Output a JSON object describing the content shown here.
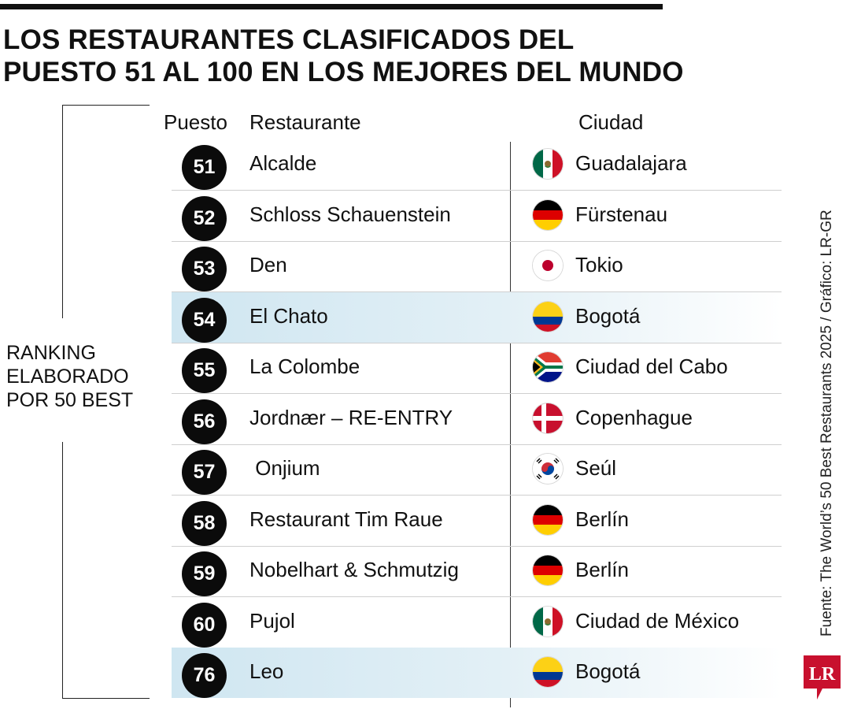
{
  "title": {
    "line1": "LOS RESTAURANTES CLASIFICADOS DEL",
    "line2": "PUESTO 51 AL 100 EN LOS MEJORES DEL MUNDO"
  },
  "side_label": {
    "line1": "RANKING",
    "line2": "ELABORADO",
    "line3": "POR 50 BEST"
  },
  "headers": {
    "puesto": "Puesto",
    "restaurante": "Restaurante",
    "ciudad": "Ciudad"
  },
  "rows": [
    {
      "rank": "51",
      "name": "Alcalde",
      "city": "Guadalajara",
      "flag_icon": "mexico-flag-icon",
      "highlight": false
    },
    {
      "rank": "52",
      "name": "Schloss Schauenstein",
      "city": "Fürstenau",
      "flag_icon": "germany-flag-icon",
      "highlight": false
    },
    {
      "rank": "53",
      "name": "Den",
      "city": "Tokio",
      "flag_icon": "japan-flag-icon",
      "highlight": false
    },
    {
      "rank": "54",
      "name": "El Chato",
      "city": "Bogotá",
      "flag_icon": "colombia-flag-icon",
      "highlight": true
    },
    {
      "rank": "55",
      "name": "La Colombe",
      "city": "Ciudad del Cabo",
      "flag_icon": "south-africa-flag-icon",
      "highlight": false
    },
    {
      "rank": "56",
      "name": "Jordnær – RE-ENTRY",
      "city": "Copenhague",
      "flag_icon": "denmark-flag-icon",
      "highlight": false
    },
    {
      "rank": "57",
      "name": " Onjium",
      "city": "Seúl",
      "flag_icon": "south-korea-flag-icon",
      "highlight": false
    },
    {
      "rank": "58",
      "name": "Restaurant Tim Raue",
      "city": "Berlín",
      "flag_icon": "germany-flag-icon",
      "highlight": false
    },
    {
      "rank": "59",
      "name": "Nobelhart & Schmutzig",
      "city": "Berlín",
      "flag_icon": "germany-flag-icon",
      "highlight": false
    },
    {
      "rank": "60",
      "name": "Pujol",
      "city": "Ciudad de México",
      "flag_icon": "mexico-flag-icon",
      "highlight": false
    },
    {
      "rank": "76",
      "name": "Leo",
      "city": "Bogotá",
      "flag_icon": "colombia-flag-icon",
      "highlight": true
    }
  ],
  "source": "Fuente: The World’s 50 Best Restaurants 2025 / Gráfico: LR-GR",
  "logo": {
    "text": "LR",
    "icon": "lr-logo-icon",
    "color": "#c8102e"
  },
  "colors": {
    "highlight": "#d6eaf4",
    "badge": "#0b0b0b",
    "text": "#111111"
  }
}
